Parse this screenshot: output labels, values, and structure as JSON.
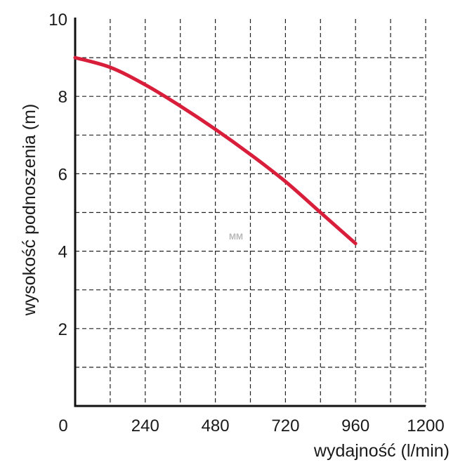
{
  "chart_data": {
    "type": "line",
    "title": "",
    "xlabel": "wydajność (l/min)",
    "ylabel": "wysokość podnoszenia (m)",
    "xlim": [
      0,
      1200
    ],
    "ylim": [
      0,
      10
    ],
    "x_ticks": [
      0,
      240,
      480,
      720,
      960,
      1200
    ],
    "x_tick_labels": [
      "0",
      "240",
      "480",
      "720",
      "960",
      "1200"
    ],
    "x_grid": [
      120,
      240,
      360,
      480,
      600,
      720,
      840,
      960,
      1080,
      1200
    ],
    "y_ticks": [
      2,
      4,
      6,
      8,
      10
    ],
    "y_tick_labels": [
      "2",
      "4",
      "6",
      "8",
      "10"
    ],
    "y_grid": [
      1,
      2,
      3,
      4,
      5,
      6,
      7,
      8,
      9
    ],
    "grid": true,
    "grid_style": "dashed",
    "watermark": "MM",
    "colors": {
      "series": "#d81e3a",
      "axis": "#111111",
      "grid": "#222222",
      "text": "#1a1a1a",
      "watermark": "#b8b8b8"
    },
    "series": [
      {
        "x": [
          0,
          120,
          240,
          360,
          480,
          600,
          720,
          840,
          960
        ],
        "y": [
          9.0,
          8.75,
          8.3,
          7.75,
          7.15,
          6.5,
          5.8,
          5.0,
          4.2
        ]
      }
    ]
  }
}
